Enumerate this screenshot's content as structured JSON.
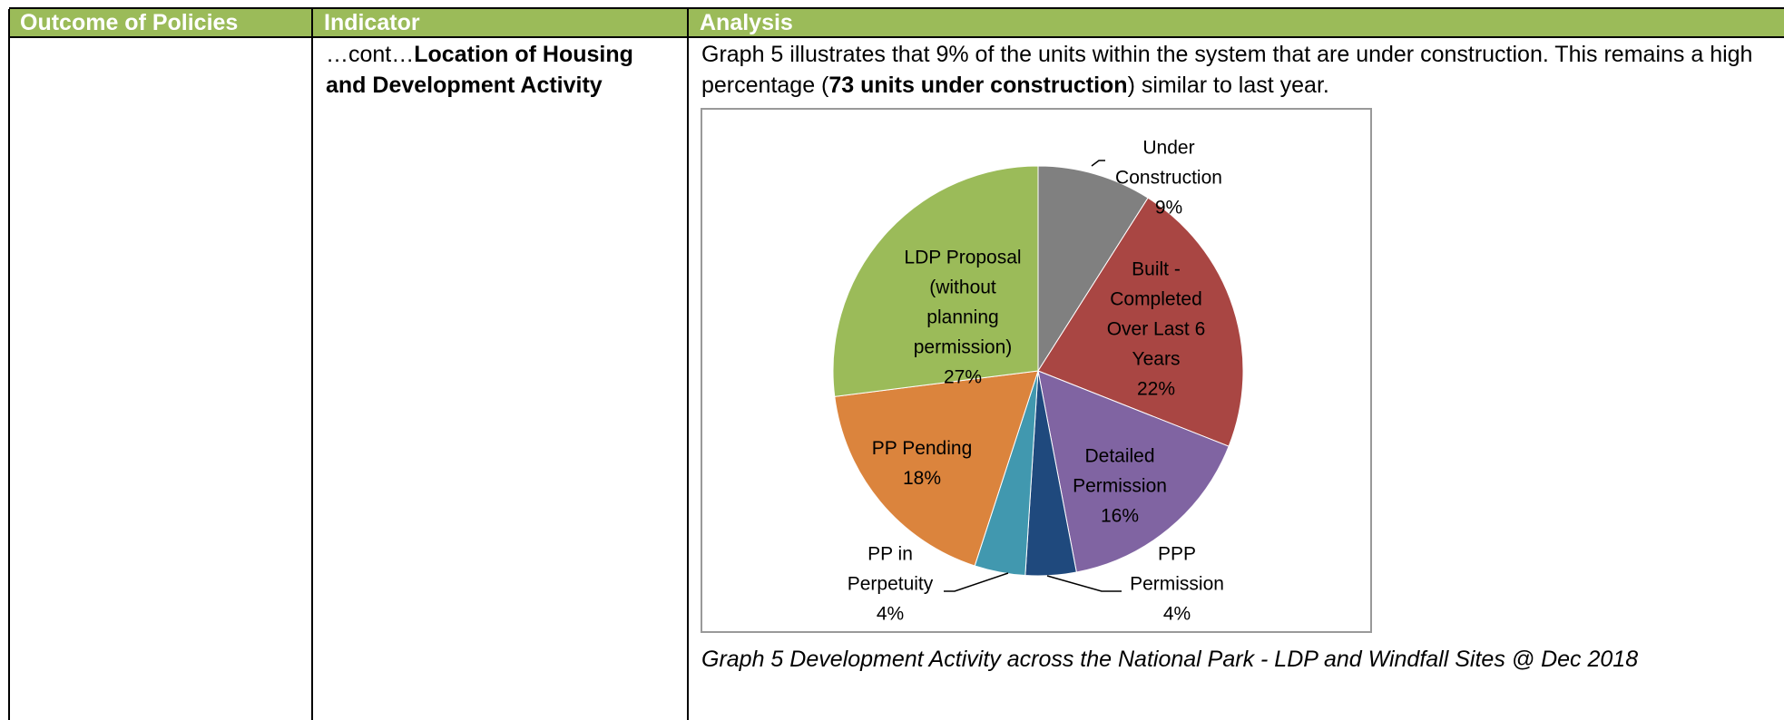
{
  "table": {
    "headers": [
      "Outcome of Policies",
      "Indicator",
      "Analysis"
    ],
    "indicator": {
      "prefix": "…cont…",
      "bold": "Location of Housing and Development Activity"
    },
    "analysis": [
      "Graph 5 illustrates that 9% of the units within the system that are under construction. This remains a high percentage (",
      "73 units under construction",
      ") similar to last year."
    ],
    "caption": "Graph 5 Development Activity across the National Park - LDP and Windfall Sites @ Dec 2018"
  },
  "chart_data": {
    "type": "pie",
    "categories": [
      "Under Construction",
      "Built - Completed Over Last 6 Years",
      "Detailed Permission",
      "PPP Permission",
      "PP in Perpetuity",
      "PP Pending",
      "LDP Proposal (without planning permission)"
    ],
    "values": [
      9,
      22,
      16,
      4,
      4,
      18,
      27
    ],
    "value_labels": [
      "9%",
      "22%",
      "16%",
      "4%",
      "4%",
      "18%",
      "27%"
    ],
    "colors": [
      "#808080",
      "#A94643",
      "#8064A2",
      "#1F497D",
      "#4198AF",
      "#DB843D",
      "#9BBB59"
    ]
  }
}
